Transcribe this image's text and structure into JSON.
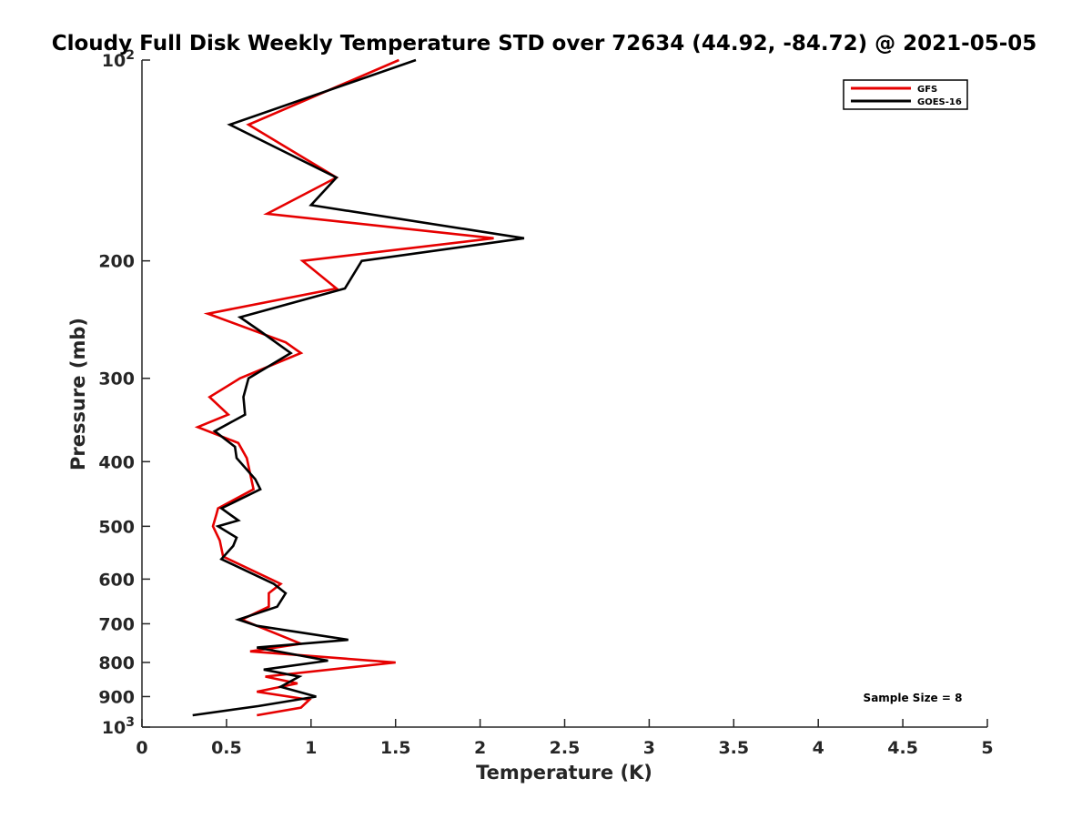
{
  "chart_data": {
    "type": "line",
    "title": "Cloudy Full Disk Weekly Temperature STD over 72634 (44.92, -84.72) @ 2021-05-05",
    "xlabel": "Temperature (K)",
    "ylabel": "Pressure (mb)",
    "xlim": [
      0,
      5
    ],
    "ylim": [
      100,
      1000
    ],
    "yscale": "log",
    "y_direction": "reverse",
    "grid": false,
    "legend_position": "top-right",
    "xticks": [
      0,
      0.5,
      1,
      1.5,
      2,
      2.5,
      3,
      3.5,
      4,
      4.5,
      5
    ],
    "xtick_labels": [
      "0",
      "0.5",
      "1",
      "1.5",
      "2",
      "2.5",
      "3",
      "3.5",
      "4",
      "4.5",
      "5"
    ],
    "yticks": [
      {
        "value": 100,
        "base": "10",
        "exp": "2"
      },
      {
        "value": 200,
        "label": "200"
      },
      {
        "value": 300,
        "label": "300"
      },
      {
        "value": 400,
        "label": "400"
      },
      {
        "value": 500,
        "label": "500"
      },
      {
        "value": 600,
        "label": "600"
      },
      {
        "value": 700,
        "label": "700"
      },
      {
        "value": 800,
        "label": "800"
      },
      {
        "value": 900,
        "label": "900"
      },
      {
        "value": 1000,
        "base": "10",
        "exp": "3"
      }
    ],
    "series": [
      {
        "name": "GFS",
        "color": "#e60000",
        "points": [
          [
            1.52,
            100
          ],
          [
            0.63,
            125
          ],
          [
            1.15,
            150
          ],
          [
            0.74,
            170
          ],
          [
            2.08,
            185
          ],
          [
            0.95,
            200
          ],
          [
            1.15,
            220
          ],
          [
            0.39,
            240
          ],
          [
            0.85,
            265
          ],
          [
            0.94,
            275
          ],
          [
            0.58,
            300
          ],
          [
            0.4,
            320
          ],
          [
            0.51,
            340
          ],
          [
            0.33,
            355
          ],
          [
            0.57,
            375
          ],
          [
            0.62,
            395
          ],
          [
            0.66,
            440
          ],
          [
            0.45,
            470
          ],
          [
            0.44,
            480
          ],
          [
            0.42,
            500
          ],
          [
            0.46,
            525
          ],
          [
            0.48,
            555
          ],
          [
            0.82,
            610
          ],
          [
            0.75,
            630
          ],
          [
            0.75,
            660
          ],
          [
            0.59,
            690
          ],
          [
            0.94,
            750
          ],
          [
            0.64,
            770
          ],
          [
            1.5,
            800
          ],
          [
            0.73,
            840
          ],
          [
            0.92,
            860
          ],
          [
            0.68,
            885
          ],
          [
            0.99,
            910
          ],
          [
            0.94,
            935
          ],
          [
            0.68,
            960
          ]
        ]
      },
      {
        "name": "GOES-16",
        "color": "#000000",
        "points": [
          [
            1.62,
            100
          ],
          [
            0.52,
            125
          ],
          [
            1.15,
            150
          ],
          [
            1.0,
            165
          ],
          [
            2.26,
            185
          ],
          [
            1.3,
            200
          ],
          [
            1.2,
            220
          ],
          [
            0.58,
            243
          ],
          [
            0.7,
            255
          ],
          [
            0.88,
            275
          ],
          [
            0.63,
            300
          ],
          [
            0.6,
            320
          ],
          [
            0.61,
            340
          ],
          [
            0.43,
            360
          ],
          [
            0.55,
            380
          ],
          [
            0.56,
            395
          ],
          [
            0.67,
            425
          ],
          [
            0.7,
            440
          ],
          [
            0.47,
            470
          ],
          [
            0.57,
            490
          ],
          [
            0.45,
            500
          ],
          [
            0.56,
            520
          ],
          [
            0.54,
            535
          ],
          [
            0.47,
            560
          ],
          [
            0.78,
            610
          ],
          [
            0.85,
            630
          ],
          [
            0.8,
            660
          ],
          [
            0.57,
            690
          ],
          [
            0.68,
            705
          ],
          [
            1.22,
            740
          ],
          [
            0.68,
            760
          ],
          [
            1.1,
            795
          ],
          [
            0.72,
            820
          ],
          [
            0.93,
            840
          ],
          [
            0.82,
            870
          ],
          [
            1.03,
            900
          ],
          [
            0.69,
            930
          ],
          [
            0.3,
            960
          ]
        ]
      }
    ],
    "annotations": [
      "Sample Size = 8"
    ]
  }
}
